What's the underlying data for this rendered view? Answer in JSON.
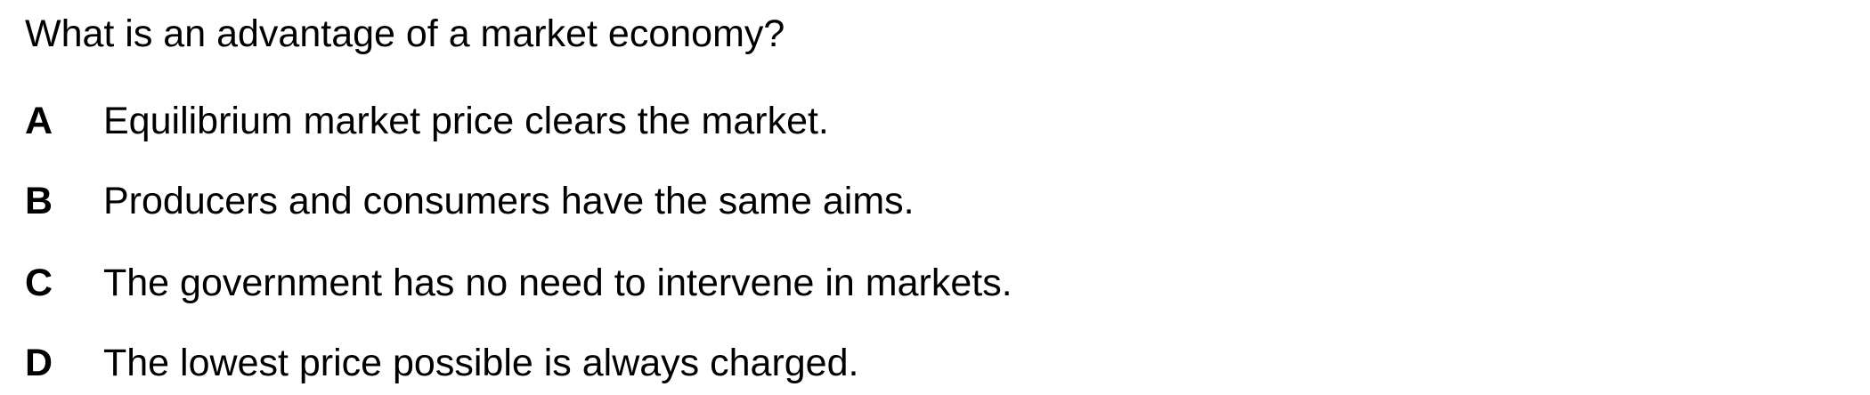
{
  "question": {
    "text": "What is an advantage of a market economy?"
  },
  "options": [
    {
      "letter": "A",
      "text": "Equilibrium market price clears the market."
    },
    {
      "letter": "B",
      "text": "Producers and consumers have the same aims."
    },
    {
      "letter": "C",
      "text": "The government has no need to intervene in markets."
    },
    {
      "letter": "D",
      "text": "The lowest price possible is always charged."
    }
  ]
}
